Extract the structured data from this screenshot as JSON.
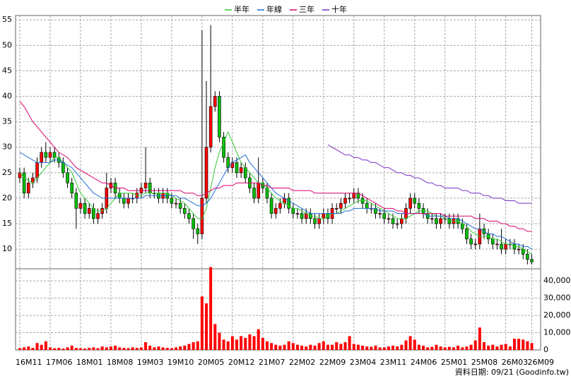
{
  "chart_data": {
    "type": "candlestick",
    "categories": [
      "16M11",
      null,
      null,
      null,
      null,
      null,
      null,
      "17M06",
      null,
      null,
      null,
      null,
      null,
      null,
      "18M01",
      null,
      null,
      null,
      null,
      null,
      null,
      "18M08",
      null,
      null,
      null,
      null,
      null,
      null,
      "19M03",
      null,
      null,
      null,
      null,
      null,
      null,
      "19M10",
      null,
      null,
      null,
      null,
      null,
      null,
      "20M05",
      null,
      null,
      null,
      null,
      null,
      null,
      "20M12",
      null,
      null,
      null,
      null,
      null,
      null,
      "21M07",
      null,
      null,
      null,
      null,
      null,
      null,
      "22M02",
      null,
      null,
      null,
      null,
      null,
      null,
      "22M09",
      null,
      null,
      null,
      null,
      null,
      null,
      "23M04",
      null,
      null,
      null,
      null,
      null,
      null,
      "23M11",
      null,
      null,
      null,
      null,
      null,
      null,
      "24M06",
      null,
      null,
      null,
      null,
      null,
      null,
      "25M01",
      null,
      null,
      null,
      null,
      null,
      null,
      "25M08",
      null,
      null,
      null,
      null,
      null,
      null,
      "26M03",
      null,
      null,
      null,
      null,
      null,
      "26M09"
    ],
    "open": [
      24,
      25,
      21,
      23,
      24,
      27,
      29,
      28,
      29,
      28,
      27,
      25,
      23,
      21,
      18,
      19,
      17,
      18,
      16,
      17,
      18,
      22,
      23,
      21,
      20,
      19,
      20,
      20,
      21,
      22,
      23,
      21,
      21,
      20,
      21,
      20,
      19,
      19,
      18,
      17,
      16,
      14,
      13,
      20,
      30,
      38,
      40,
      32,
      28,
      26,
      27,
      25,
      26,
      24,
      22,
      20,
      23,
      22,
      20,
      17,
      18,
      19,
      20,
      18,
      17,
      17,
      16,
      17,
      16,
      15,
      16,
      17,
      16,
      18,
      18,
      19,
      20,
      20,
      21,
      20,
      19,
      18,
      18,
      17,
      17,
      16,
      16,
      15,
      15,
      16,
      18,
      20,
      19,
      18,
      17,
      16,
      16,
      15,
      16,
      16,
      15,
      16,
      15,
      14,
      12,
      11,
      11,
      14,
      13,
      12,
      11,
      11,
      10,
      11,
      11,
      10,
      10,
      9,
      8
    ],
    "high": [
      26,
      26,
      24,
      25,
      28,
      30,
      31,
      30,
      30,
      29,
      28,
      26,
      24,
      22,
      20,
      20,
      19,
      19,
      18,
      19,
      25,
      24,
      24,
      22,
      21,
      21,
      21,
      22,
      23,
      30,
      24,
      22,
      22,
      22,
      22,
      21,
      20,
      20,
      19,
      18,
      17,
      15,
      53,
      43,
      54,
      41,
      41,
      33,
      29,
      28,
      28,
      27,
      27,
      25,
      23,
      28,
      24,
      23,
      21,
      19,
      20,
      21,
      21,
      19,
      18,
      18,
      18,
      18,
      17,
      17,
      18,
      18,
      19,
      19,
      20,
      21,
      21,
      22,
      22,
      21,
      20,
      19,
      19,
      18,
      18,
      17,
      17,
      16,
      17,
      19,
      21,
      21,
      20,
      19,
      18,
      17,
      17,
      17,
      17,
      17,
      17,
      17,
      16,
      15,
      13,
      12,
      17,
      15,
      14,
      13,
      12,
      14,
      12,
      12,
      12,
      11,
      11,
      10,
      9
    ],
    "low": [
      23,
      20,
      20,
      22,
      23,
      26,
      27,
      27,
      27,
      26,
      24,
      22,
      20,
      14,
      17,
      16,
      16,
      15,
      15,
      16,
      17,
      21,
      20,
      19,
      18,
      18,
      19,
      19,
      20,
      21,
      20,
      20,
      19,
      19,
      19,
      18,
      18,
      17,
      16,
      15,
      12,
      11,
      12,
      19,
      29,
      37,
      31,
      27,
      25,
      25,
      24,
      24,
      23,
      21,
      19,
      19,
      21,
      19,
      16,
      16,
      17,
      18,
      17,
      16,
      16,
      15,
      15,
      15,
      14,
      14,
      15,
      15,
      15,
      17,
      17,
      18,
      19,
      19,
      19,
      18,
      17,
      17,
      16,
      16,
      15,
      15,
      14,
      14,
      14,
      15,
      17,
      18,
      17,
      16,
      15,
      15,
      14,
      14,
      15,
      14,
      14,
      14,
      13,
      11,
      10,
      10,
      10,
      12,
      11,
      10,
      10,
      9,
      9,
      10,
      9,
      9,
      8,
      7,
      7
    ],
    "close": [
      25,
      21,
      23,
      24,
      27,
      29,
      28,
      29,
      28,
      27,
      25,
      23,
      21,
      18,
      19,
      17,
      18,
      16,
      17,
      18,
      22,
      23,
      21,
      20,
      19,
      20,
      20,
      21,
      22,
      23,
      21,
      21,
      20,
      21,
      20,
      19,
      19,
      18,
      17,
      16,
      14,
      13,
      20,
      30,
      38,
      40,
      32,
      28,
      26,
      27,
      25,
      26,
      24,
      22,
      20,
      23,
      22,
      20,
      17,
      18,
      19,
      20,
      18,
      17,
      17,
      16,
      17,
      16,
      15,
      16,
      17,
      16,
      18,
      18,
      19,
      20,
      20,
      21,
      20,
      19,
      18,
      18,
      17,
      17,
      16,
      16,
      15,
      15,
      16,
      18,
      20,
      19,
      18,
      17,
      16,
      16,
      15,
      16,
      16,
      15,
      16,
      15,
      14,
      12,
      11,
      11,
      14,
      13,
      12,
      11,
      11,
      10,
      11,
      11,
      10,
      10,
      9,
      8,
      7.5
    ],
    "volume": [
      1000,
      1500,
      2000,
      1200,
      4000,
      3000,
      5000,
      1500,
      1000,
      1200,
      800,
      1500,
      2500,
      1200,
      1000,
      800,
      1200,
      1500,
      1000,
      2000,
      1500,
      2000,
      2500,
      1500,
      1200,
      1000,
      1500,
      1200,
      1500,
      4500,
      2500,
      1500,
      2000,
      1500,
      1200,
      1000,
      1500,
      2000,
      2500,
      3500,
      4500,
      5000,
      31000,
      27000,
      48000,
      15000,
      10000,
      6000,
      5000,
      8000,
      6000,
      8000,
      7000,
      9000,
      8000,
      12000,
      7000,
      5000,
      4000,
      3000,
      2500,
      3000,
      5000,
      4000,
      3000,
      2500,
      2000,
      3000,
      2500,
      4000,
      5000,
      3000,
      3000,
      4500,
      3500,
      4500,
      8000,
      3500,
      3000,
      2500,
      2000,
      1800,
      2500,
      1500,
      1500,
      2000,
      2500,
      2000,
      3000,
      5500,
      8000,
      6000,
      3000,
      2500,
      1500,
      1800,
      3000,
      2000,
      1500,
      1800,
      1500,
      2500,
      1500,
      2000,
      3000,
      5500,
      13000,
      4500,
      2500,
      3000,
      2000,
      3000,
      3500,
      2000,
      6500,
      6500,
      6000,
      5000,
      4000
    ],
    "up_color": "#ff0000",
    "down_color": "#00c000",
    "volume_color": "#ff0000",
    "ma": [
      {
        "name": "半年",
        "color": "#33cc33",
        "values": [
          25,
          24,
          23.5,
          23,
          24,
          25,
          26,
          27,
          28,
          28,
          27,
          26,
          25,
          23,
          21,
          20,
          19,
          18,
          17.5,
          17.5,
          18,
          19,
          20,
          21,
          21,
          21,
          21,
          20.5,
          20.5,
          21,
          21,
          21,
          21,
          21,
          21,
          20.5,
          20,
          19.5,
          19,
          18,
          17,
          16,
          16,
          18,
          22,
          26,
          29,
          31,
          33,
          31,
          29,
          27,
          26,
          25,
          24,
          23,
          23,
          22,
          21,
          20,
          19.5,
          19,
          18.5,
          18,
          18,
          17.5,
          17,
          16.5,
          16.5,
          16,
          16,
          16.5,
          17,
          17,
          17.5,
          18,
          18.5,
          19,
          19.5,
          19.5,
          19.5,
          19,
          18.5,
          18,
          17.5,
          17,
          16.5,
          16,
          16,
          16,
          16.5,
          17,
          17.5,
          17.5,
          17.5,
          17,
          16.5,
          16.5,
          16,
          15.5,
          15.5,
          15.5,
          15,
          14.5,
          13.5,
          13,
          12.5,
          12.5,
          12.5,
          12,
          12,
          11.5,
          11,
          11,
          10.5,
          10.5,
          10,
          9.5,
          9
        ]
      },
      {
        "name": "年線",
        "color": "#1f6fd6",
        "values": [
          29,
          28.5,
          28,
          27.5,
          27,
          27,
          27,
          27,
          27.5,
          27.5,
          27,
          26.5,
          26,
          25,
          24,
          23,
          22,
          21,
          20.5,
          20,
          20,
          20,
          20,
          20,
          20,
          20,
          20,
          20,
          20,
          20.5,
          20.5,
          20.5,
          20.5,
          20.5,
          20.5,
          20.5,
          20.5,
          20,
          20,
          19.5,
          19,
          18.5,
          18.5,
          19,
          20,
          21.5,
          23,
          24.5,
          26,
          27,
          27.5,
          28,
          28.5,
          27,
          26,
          25,
          24,
          23,
          22,
          21,
          20.5,
          20,
          19.5,
          19,
          18.5,
          18,
          17.5,
          17,
          17,
          17,
          17,
          17,
          17,
          17,
          17,
          17.5,
          17.5,
          18,
          18,
          18,
          18,
          18,
          18,
          17.5,
          17.5,
          17.5,
          17.5,
          17,
          17,
          17,
          17,
          17,
          17,
          17,
          16.5,
          16.5,
          16.5,
          16.5,
          16.5,
          16,
          16,
          16,
          15.5,
          15,
          14.5,
          14,
          14,
          13.5,
          13,
          13,
          12.5,
          12.5,
          12,
          11.5,
          11,
          11,
          10.5,
          10.5,
          10
        ]
      },
      {
        "name": "三年",
        "color": "#d6006b",
        "values": [
          39,
          38,
          36.5,
          35,
          34,
          33,
          32,
          31,
          30,
          29,
          28.5,
          28,
          27,
          26,
          25.5,
          25,
          24.5,
          24,
          23.5,
          23,
          23,
          22.5,
          22,
          22,
          22,
          21.5,
          21.5,
          21.5,
          21.5,
          21.5,
          21.5,
          21.5,
          21.5,
          21.5,
          21.5,
          21.5,
          21.5,
          21.5,
          21,
          21,
          21,
          20.5,
          20.5,
          21,
          21.5,
          22,
          22,
          22.5,
          22.5,
          22.5,
          23,
          23,
          23,
          23,
          23,
          23,
          22.5,
          22.5,
          22,
          22,
          22,
          22,
          22,
          21.5,
          21.5,
          21.5,
          21.5,
          21.5,
          21,
          21,
          21,
          21,
          21,
          21,
          21,
          21,
          21,
          21,
          21,
          20.5,
          20,
          19.5,
          19,
          18.5,
          18,
          18,
          18,
          17.5,
          17.5,
          17,
          17,
          17,
          17,
          17,
          17,
          17,
          17,
          17,
          16.5,
          16.5,
          16.5,
          16.5,
          16.5,
          16.5,
          16.5,
          16,
          16,
          16,
          15.5,
          15.5,
          15.5,
          15,
          15,
          14.5,
          14.5,
          14,
          14,
          13.5,
          13.5
        ]
      },
      {
        "name": "十年",
        "color": "#7a2fc8",
        "values": [
          null,
          null,
          null,
          null,
          null,
          null,
          null,
          null,
          null,
          null,
          null,
          null,
          null,
          null,
          null,
          null,
          null,
          null,
          null,
          null,
          null,
          null,
          null,
          null,
          null,
          null,
          null,
          null,
          null,
          null,
          null,
          null,
          null,
          null,
          null,
          null,
          null,
          null,
          null,
          null,
          null,
          null,
          null,
          null,
          null,
          null,
          null,
          null,
          null,
          null,
          null,
          null,
          null,
          null,
          null,
          null,
          null,
          null,
          null,
          null,
          null,
          null,
          null,
          null,
          null,
          null,
          null,
          null,
          null,
          null,
          null,
          30.5,
          30,
          29.5,
          29,
          28.5,
          28.5,
          28,
          28,
          27.5,
          27.5,
          27,
          27,
          26.5,
          26,
          26,
          25.5,
          25,
          25,
          24.5,
          24.5,
          24,
          24,
          23.5,
          23,
          23,
          22.5,
          22.5,
          22,
          22,
          22,
          22,
          21.5,
          21.5,
          21,
          21,
          21,
          20.5,
          20.5,
          20,
          20,
          20,
          19.5,
          19.5,
          19.5,
          19,
          19,
          19,
          19
        ]
      }
    ],
    "ylim": [
      6,
      56
    ],
    "yticks": [
      10,
      15,
      20,
      25,
      30,
      35,
      40,
      45,
      50,
      55
    ],
    "y2lim": [
      0,
      47000
    ],
    "y2ticks": [
      0,
      {
        "value": 10000,
        "label": "10,000"
      },
      {
        "value": 20000,
        "label": "20,000"
      },
      {
        "value": 30000,
        "label": "30,000"
      },
      {
        "value": 40000,
        "label": "40,000"
      }
    ],
    "grid": true,
    "source": "資料日期: 09/21 (Goodinfo.tw)"
  }
}
